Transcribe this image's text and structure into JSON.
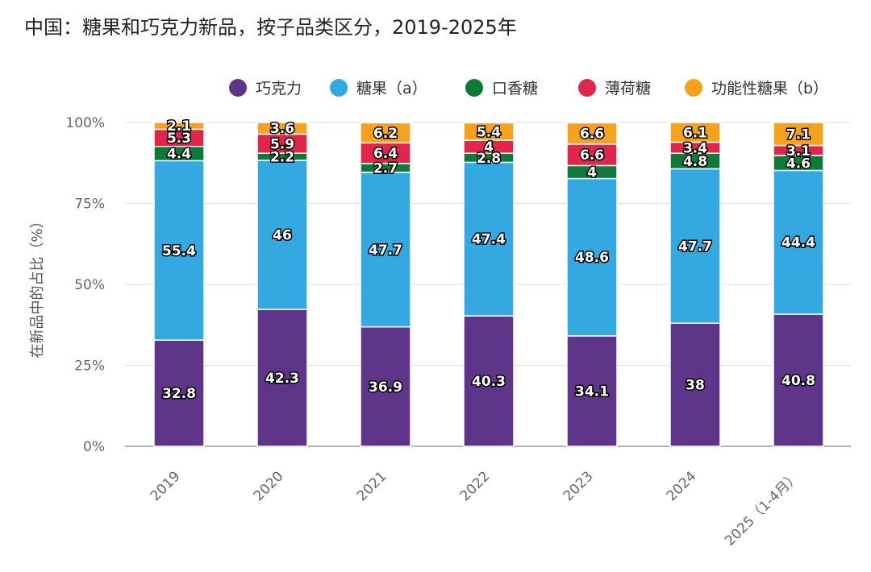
{
  "title": "中国：糖果和巧克力新品，按子品类区分，2019-2025年",
  "chart_data": {
    "type": "bar",
    "stacked": true,
    "title": "中国：糖果和巧克力新品，按子品类区分，2019-2025年",
    "xlabel": "",
    "ylabel": "在新品中的占比（%）",
    "ylim": [
      0,
      100
    ],
    "yticks": [
      "0%",
      "25%",
      "50%",
      "75%",
      "100%"
    ],
    "grid": true,
    "legend_position": "top",
    "categories": [
      "2019",
      "2020",
      "2021",
      "2022",
      "2023",
      "2024",
      "2025（1-4月）"
    ],
    "series": [
      {
        "name": "巧克力",
        "color": "#5e3589",
        "values": [
          32.8,
          42.3,
          36.9,
          40.3,
          34.1,
          38,
          40.8
        ]
      },
      {
        "name": "糖果（a）",
        "color": "#34a8e0",
        "values": [
          55.4,
          46,
          47.7,
          47.4,
          48.6,
          47.7,
          44.4
        ]
      },
      {
        "name": "口香糖",
        "color": "#0f7a36",
        "values": [
          4.4,
          2.2,
          2.7,
          2.8,
          4,
          4.8,
          4.6
        ]
      },
      {
        "name": "薄荷糖",
        "color": "#e0264a",
        "values": [
          5.3,
          5.9,
          6.4,
          4,
          6.6,
          3.4,
          3.1
        ]
      },
      {
        "name": "功能性糖果（b）",
        "color": "#f7a21c",
        "values": [
          2.1,
          3.6,
          6.2,
          5.4,
          6.6,
          6.1,
          7.1
        ]
      }
    ]
  }
}
